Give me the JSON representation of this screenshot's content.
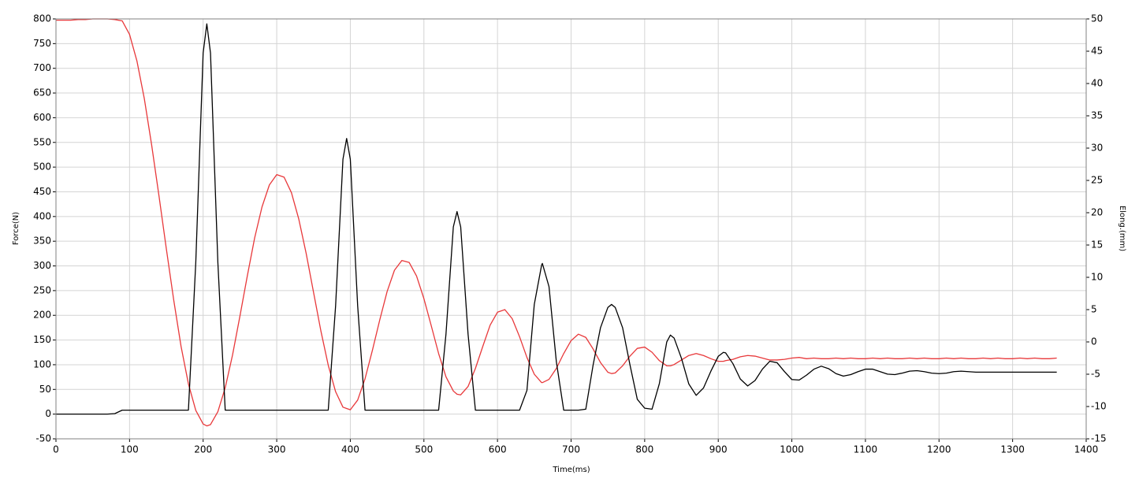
{
  "chart_data": {
    "type": "line",
    "xlabel": "Time(ms)",
    "ylabel": "Force(N)",
    "y2label": "Elong.(mm)",
    "xlim": [
      0,
      1400
    ],
    "xticks": [
      0,
      100,
      200,
      300,
      400,
      500,
      600,
      700,
      800,
      900,
      1000,
      1100,
      1200,
      1300,
      1400
    ],
    "ylim": [
      -50,
      800
    ],
    "yticks": [
      -50,
      0,
      50,
      100,
      150,
      200,
      250,
      300,
      350,
      400,
      450,
      500,
      550,
      600,
      650,
      700,
      750,
      800
    ],
    "y2lim": [
      -15,
      50
    ],
    "y2ticks": [
      -15,
      -10,
      -5,
      0,
      5,
      10,
      15,
      20,
      25,
      30,
      35,
      40,
      45,
      50
    ],
    "grid": true,
    "x": [
      0,
      10,
      20,
      30,
      40,
      50,
      60,
      70,
      80,
      90,
      100,
      110,
      120,
      130,
      140,
      150,
      160,
      170,
      180,
      190,
      200,
      205,
      210,
      220,
      230,
      240,
      250,
      260,
      270,
      280,
      290,
      300,
      310,
      320,
      330,
      340,
      350,
      360,
      370,
      380,
      390,
      395,
      400,
      410,
      420,
      430,
      440,
      450,
      460,
      470,
      480,
      490,
      500,
      510,
      520,
      530,
      540,
      545,
      550,
      560,
      570,
      580,
      590,
      600,
      610,
      620,
      630,
      640,
      650,
      660,
      661,
      670,
      680,
      690,
      700,
      710,
      720,
      730,
      740,
      750,
      755,
      760,
      770,
      780,
      790,
      800,
      810,
      820,
      830,
      835,
      840,
      850,
      860,
      870,
      880,
      890,
      900,
      907,
      910,
      920,
      930,
      940,
      950,
      960,
      970,
      980,
      990,
      1000,
      1010,
      1020,
      1030,
      1040,
      1050,
      1060,
      1070,
      1080,
      1090,
      1100,
      1110,
      1120,
      1130,
      1140,
      1150,
      1160,
      1170,
      1180,
      1190,
      1200,
      1210,
      1220,
      1230,
      1240,
      1250,
      1260,
      1270,
      1280,
      1290,
      1300,
      1310,
      1320,
      1330,
      1340,
      1350,
      1360
    ],
    "series": [
      {
        "color": "#000000",
        "values": [
          0,
          0,
          0,
          0,
          0,
          0,
          0,
          0,
          1,
          8,
          8,
          8,
          8,
          8,
          8,
          8,
          8,
          8,
          8,
          307,
          731,
          790,
          731,
          307,
          8,
          8,
          8,
          8,
          8,
          8,
          8,
          8,
          8,
          8,
          8,
          8,
          8,
          8,
          8,
          219,
          516,
          558,
          516,
          219,
          8,
          8,
          8,
          8,
          8,
          8,
          8,
          8,
          8,
          8,
          8,
          162,
          379,
          410,
          379,
          162,
          8,
          8,
          8,
          8,
          8,
          8,
          8,
          48,
          222,
          302,
          305,
          258,
          106,
          8,
          8,
          8,
          10,
          100,
          175,
          216,
          222,
          216,
          175,
          100,
          30,
          12,
          10,
          62,
          146,
          160,
          154,
          113,
          61,
          38,
          53,
          87,
          117,
          125,
          124,
          102,
          71,
          57,
          68,
          91,
          107,
          104,
          86,
          70,
          69,
          79,
          91,
          97,
          92,
          82,
          77,
          80,
          86,
          91,
          91,
          86,
          81,
          80,
          83,
          87,
          88,
          86,
          83,
          82,
          83,
          86,
          87,
          86,
          85,
          85,
          85,
          85,
          85,
          85,
          85,
          85,
          85,
          85,
          85,
          85
        ]
      },
      {
        "color": "#e8383a",
        "axis": "y2",
        "values": [
          49.8,
          49.8,
          49.8,
          49.9,
          49.9,
          50,
          50,
          50,
          49.9,
          49.7,
          47.6,
          43.5,
          37.7,
          30.5,
          22.6,
          14.4,
          6.5,
          -0.7,
          -6.5,
          -10.6,
          -12.7,
          -13,
          -12.8,
          -10.8,
          -7.1,
          -2,
          4,
          10.2,
          16.1,
          20.9,
          24.3,
          25.9,
          25.5,
          23.1,
          19,
          13.7,
          7.7,
          1.7,
          -3.6,
          -7.7,
          -10.1,
          -10.3,
          -10.5,
          -9,
          -5.7,
          -1.3,
          3.4,
          7.8,
          11.1,
          12.6,
          12.3,
          10.2,
          6.7,
          2.5,
          -1.8,
          -5.4,
          -7.6,
          -8.1,
          -8.2,
          -6.9,
          -4.1,
          -0.7,
          2.6,
          4.6,
          5,
          3.6,
          0.8,
          -2.4,
          -5,
          -6.3,
          -6.3,
          -5.8,
          -4.1,
          -1.8,
          0.2,
          1.2,
          0.7,
          -1.1,
          -3.2,
          -4.7,
          -4.9,
          -4.8,
          -3.7,
          -2.2,
          -1,
          -0.8,
          -1.6,
          -2.9,
          -3.7,
          -3.7,
          -3.5,
          -2.8,
          -2.1,
          -1.8,
          -2.1,
          -2.6,
          -3,
          -3,
          -2.9,
          -2.7,
          -2.3,
          -2.1,
          -2.2,
          -2.5,
          -2.8,
          -2.8,
          -2.7,
          -2.5,
          -2.4,
          -2.6,
          -2.5,
          -2.6,
          -2.6,
          -2.5,
          -2.6,
          -2.5,
          -2.6,
          -2.6,
          -2.5,
          -2.6,
          -2.5,
          -2.6,
          -2.6,
          -2.5,
          -2.6,
          -2.5,
          -2.6,
          -2.6,
          -2.5,
          -2.6,
          -2.5,
          -2.6,
          -2.6,
          -2.5,
          -2.6,
          -2.5,
          -2.6,
          -2.6,
          -2.5,
          -2.6,
          -2.5,
          -2.6,
          -2.6,
          -2.5
        ]
      }
    ]
  }
}
